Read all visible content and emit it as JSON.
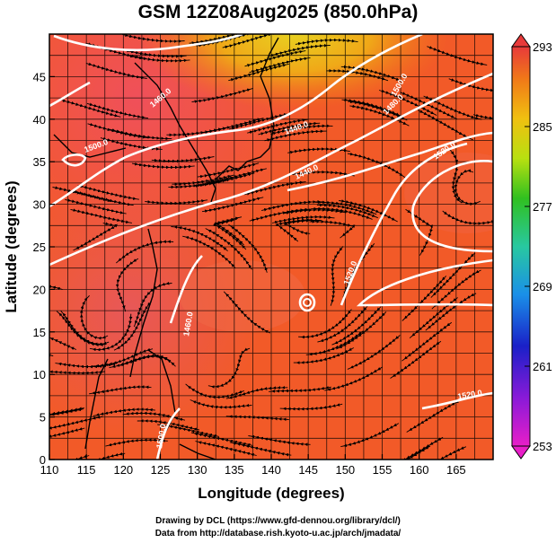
{
  "title": "GSM 12Z08Aug2025 (850.0hPa)",
  "xaxis": {
    "label": "Longitude (degrees)",
    "range": [
      110,
      170
    ],
    "ticks": [
      110,
      115,
      120,
      125,
      130,
      135,
      140,
      145,
      150,
      155,
      160,
      165
    ]
  },
  "yaxis": {
    "label": "Latitude  (degrees)",
    "range": [
      0,
      50
    ],
    "ticks": [
      0,
      5,
      10,
      15,
      20,
      25,
      30,
      35,
      40,
      45
    ]
  },
  "colorbar": {
    "ticks": [
      293,
      285,
      277,
      269,
      261,
      253
    ],
    "range": [
      253,
      293
    ]
  },
  "contours": {
    "labels": [
      "1440.0",
      "1440.0",
      "1520.0",
      "1480.0",
      "1500.0",
      "1520.0",
      "1460.0",
      "1460.0",
      "1500.0",
      "1500.0",
      "1520.0"
    ]
  },
  "credits": {
    "line1": "Drawing by DCL (https://www.gfd-dennou.org/library/dcl/)",
    "line2": "Data from http://database.rish.kyoto-u.ac.jp/arch/jmadata/"
  }
}
